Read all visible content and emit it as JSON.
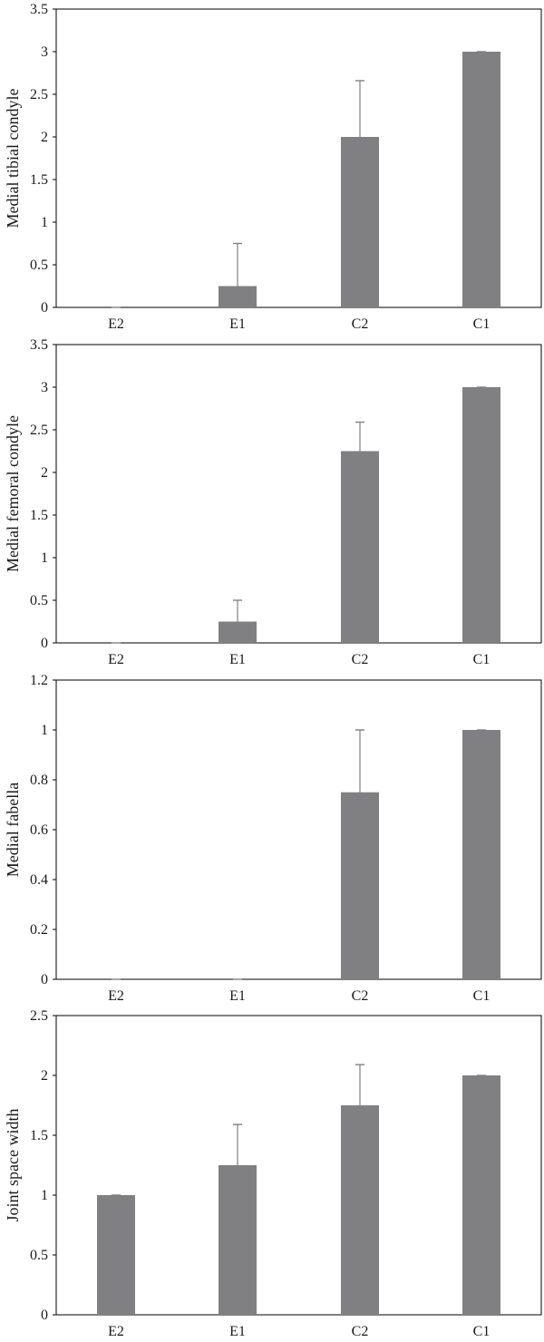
{
  "colors": {
    "bar": "#808083",
    "error_bar": "#808083",
    "axis": "#000000",
    "background": "#ffffff"
  },
  "chart_data": [
    {
      "type": "bar",
      "categories": [
        "E2",
        "E1",
        "C2",
        "C1"
      ],
      "series": [
        {
          "values": [
            0,
            0.25,
            2,
            3
          ],
          "error_plus": [
            0,
            0.5,
            0.66,
            0
          ]
        }
      ],
      "ylabel": "Medial tibial condyle",
      "xlabel": "",
      "ylim": [
        0,
        3.5
      ],
      "yticks": [
        "0",
        "0.5",
        "1",
        "1.5",
        "2",
        "2.5",
        "3",
        "3.5"
      ],
      "grid": false,
      "legend": false
    },
    {
      "type": "bar",
      "categories": [
        "E2",
        "E1",
        "C2",
        "C1"
      ],
      "series": [
        {
          "values": [
            0,
            0.25,
            2.25,
            3
          ],
          "error_plus": [
            0,
            0.25,
            0.34,
            0
          ]
        }
      ],
      "ylabel": "Medial femoral condyle",
      "xlabel": "",
      "ylim": [
        0,
        3.5
      ],
      "yticks": [
        "0",
        "0.5",
        "1",
        "1.5",
        "2",
        "2.5",
        "3",
        "3.5"
      ],
      "grid": false,
      "legend": false
    },
    {
      "type": "bar",
      "categories": [
        "E2",
        "E1",
        "C2",
        "C1"
      ],
      "series": [
        {
          "values": [
            0,
            0,
            0.75,
            1
          ],
          "error_plus": [
            0,
            0,
            0.25,
            0
          ]
        }
      ],
      "ylabel": "Medial fabella",
      "xlabel": "",
      "ylim": [
        0,
        1.2
      ],
      "yticks": [
        "0",
        "0.2",
        "0.4",
        "0.6",
        "0.8",
        "1",
        "1.2"
      ],
      "grid": false,
      "legend": false
    },
    {
      "type": "bar",
      "categories": [
        "E2",
        "E1",
        "C2",
        "C1"
      ],
      "series": [
        {
          "values": [
            1,
            1.25,
            1.75,
            2
          ],
          "error_plus": [
            0,
            0.34,
            0.34,
            0
          ]
        }
      ],
      "ylabel": "Joint space width",
      "xlabel": "",
      "ylim": [
        0,
        2.5
      ],
      "yticks": [
        "0",
        "0.5",
        "1",
        "1.5",
        "2",
        "2.5"
      ],
      "grid": false,
      "legend": false
    }
  ]
}
